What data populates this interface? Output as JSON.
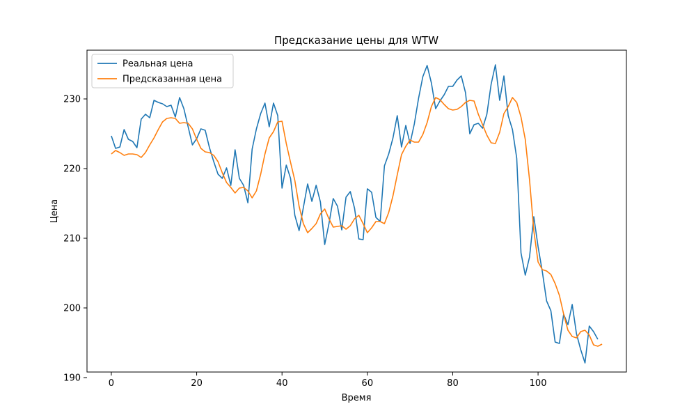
{
  "chart_data": {
    "type": "line",
    "title": "Предсказание цены для WTW",
    "xlabel": "Время",
    "ylabel": "Цена",
    "xlim": [
      -5.7,
      120.7
    ],
    "ylim": [
      190.8,
      237.0
    ],
    "xticks": [
      0,
      20,
      40,
      60,
      80,
      100
    ],
    "yticks": [
      190,
      200,
      210,
      220,
      230
    ],
    "grid": false,
    "legend_position": "top-left",
    "series": [
      {
        "name": "Реальная цена",
        "color": "#1f77b4",
        "values": [
          224.7,
          222.9,
          223.1,
          225.6,
          224.2,
          223.9,
          223.0,
          227.1,
          227.8,
          227.3,
          229.8,
          229.5,
          229.3,
          228.9,
          229.1,
          227.4,
          230.2,
          228.6,
          226.0,
          223.4,
          224.3,
          225.7,
          225.5,
          223.0,
          221.0,
          219.2,
          218.6,
          220.1,
          217.6,
          222.7,
          218.6,
          217.6,
          215.1,
          222.8,
          225.7,
          227.9,
          229.4,
          226.0,
          229.4,
          227.6,
          217.2,
          220.5,
          218.6,
          213.3,
          211.1,
          214.4,
          217.8,
          215.3,
          217.6,
          215.2,
          209.1,
          212.1,
          215.7,
          214.6,
          211.2,
          215.9,
          216.7,
          214.3,
          209.9,
          209.8,
          217.1,
          216.6,
          213.0,
          212.4,
          220.4,
          222.1,
          224.4,
          227.6,
          223.1,
          226.2,
          223.6,
          226.4,
          230.1,
          233.2,
          234.8,
          232.3,
          228.6,
          229.7,
          230.6,
          231.8,
          231.8,
          232.7,
          233.3,
          230.9,
          225.0,
          226.3,
          226.5,
          225.8,
          227.8,
          232.1,
          234.9,
          229.8,
          233.3,
          227.6,
          225.6,
          221.5,
          207.9,
          204.7,
          207.3,
          213.1,
          208.8,
          205.2,
          201.0,
          199.6,
          195.1,
          194.9,
          199.1,
          197.6,
          200.5,
          196.3,
          194.0,
          192.1,
          197.4,
          196.6,
          195.5
        ]
      },
      {
        "name": "Предсказанная цена",
        "color": "#ff7f0e",
        "values": [
          222.1,
          222.6,
          222.3,
          221.9,
          222.1,
          222.1,
          222.0,
          221.6,
          222.3,
          223.4,
          224.4,
          225.6,
          226.7,
          227.2,
          227.3,
          227.2,
          226.5,
          226.6,
          226.5,
          225.7,
          224.2,
          222.9,
          222.4,
          222.3,
          221.9,
          221.0,
          219.4,
          218.0,
          217.3,
          216.5,
          217.2,
          217.3,
          216.8,
          215.8,
          216.8,
          219.2,
          222.1,
          224.4,
          225.3,
          226.7,
          226.8,
          223.6,
          220.9,
          218.3,
          214.6,
          212.1,
          210.8,
          211.4,
          212.1,
          213.5,
          214.2,
          212.8,
          211.6,
          211.7,
          211.8,
          211.3,
          211.8,
          212.8,
          213.3,
          212.1,
          210.8,
          211.5,
          212.4,
          212.4,
          212.1,
          213.7,
          216.1,
          219.1,
          222.0,
          223.2,
          224.1,
          223.8,
          223.8,
          224.9,
          226.6,
          228.9,
          230.2,
          229.9,
          229.2,
          228.6,
          228.4,
          228.5,
          228.9,
          229.5,
          229.8,
          229.7,
          227.8,
          226.3,
          224.8,
          223.7,
          223.6,
          225.2,
          227.9,
          228.9,
          230.2,
          229.5,
          227.4,
          224.2,
          218.4,
          211.1,
          206.6,
          205.5,
          205.3,
          204.8,
          203.5,
          201.8,
          199.1,
          196.8,
          195.9,
          195.7,
          196.6,
          196.8,
          196.1,
          194.7,
          194.5,
          194.8
        ]
      }
    ]
  }
}
